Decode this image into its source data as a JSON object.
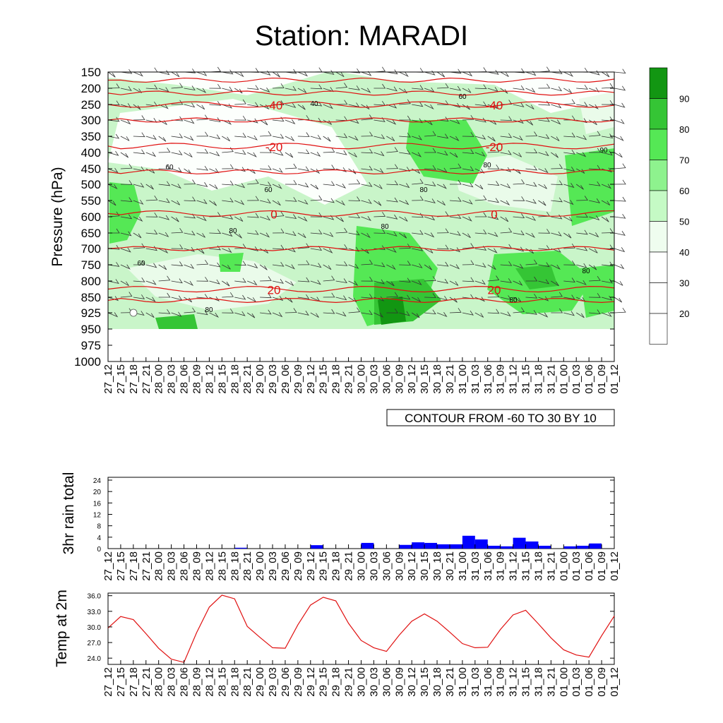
{
  "title": "Station: MARADI",
  "time_labels": [
    "27_12",
    "27_15",
    "27_18",
    "27_21",
    "28_00",
    "28_03",
    "28_06",
    "28_09",
    "28_12",
    "28_15",
    "28_18",
    "28_21",
    "29_00",
    "29_03",
    "29_06",
    "29_09",
    "29_12",
    "29_15",
    "29_18",
    "29_21",
    "30_00",
    "30_03",
    "30_06",
    "30_09",
    "30_12",
    "30_15",
    "30_18",
    "30_21",
    "31_00",
    "31_03",
    "31_06",
    "31_09",
    "31_12",
    "31_15",
    "31_18",
    "31_21",
    "01_00",
    "01_03",
    "01_06",
    "01_09",
    "01_12"
  ],
  "chart_data": [
    {
      "type": "heatmap",
      "name": "humidity-temperature-section",
      "ylabel": "Pressure (hPa)",
      "y_ticks": [
        "150",
        "200",
        "250",
        "300",
        "350",
        "400",
        "450",
        "500",
        "550",
        "600",
        "650",
        "700",
        "750",
        "800",
        "850",
        "925",
        "950",
        "975",
        "1000"
      ],
      "legend_levels": [
        "20",
        "30",
        "40",
        "50",
        "60",
        "70",
        "80",
        "90"
      ],
      "legend_colors": [
        "#ffffff",
        "#ffffff",
        "#ffffff",
        "#effdef",
        "#c5fac5",
        "#8ef28e",
        "#55e855",
        "#35c535",
        "#129612"
      ],
      "contour_label": "CONTOUR FROM -60 TO 30 BY 10",
      "temperature_isolines": [
        {
          "value": "-40",
          "p": 250
        },
        {
          "value": "-20",
          "p": 380
        },
        {
          "value": "0",
          "p": 590
        },
        {
          "value": "20",
          "p": 825
        }
      ],
      "humidity_labels": [
        "60",
        "80",
        "40",
        "90"
      ]
    },
    {
      "type": "bar",
      "name": "3hr-rain",
      "ylabel": "3hr rain total",
      "y_ticks": [
        "24",
        "20",
        "16",
        "12",
        "8",
        "4",
        "0"
      ],
      "ylim": [
        0,
        24
      ],
      "values": [
        0,
        0,
        0,
        0,
        0,
        0,
        0,
        0,
        0,
        0,
        0.3,
        0,
        0,
        0,
        0,
        0,
        1.2,
        0,
        0,
        0,
        2,
        0,
        0,
        1.3,
        2.2,
        2,
        1.5,
        1.5,
        4.5,
        3.2,
        1,
        0.8,
        3.8,
        2.5,
        1,
        0,
        0.8,
        1,
        1.8,
        0
      ]
    },
    {
      "type": "line",
      "name": "temp-2m",
      "ylabel": "Temp at 2m",
      "y_ticks": [
        "36.0",
        "33.0",
        "30.0",
        "27.0",
        "24.0"
      ],
      "ylim": [
        22.8,
        36.5
      ],
      "values": [
        29.8,
        32,
        31.4,
        28.7,
        25.9,
        23.8,
        23.2,
        28.9,
        33.8,
        36.1,
        35.4,
        30.1,
        28,
        26,
        25.9,
        30.4,
        34.2,
        35.7,
        35,
        30.7,
        27.4,
        26,
        25.3,
        28.4,
        31.1,
        32.5,
        31.1,
        29,
        26.8,
        26,
        26.1,
        29.5,
        32.3,
        33.2,
        30.6,
        27.9,
        25.6,
        24.6,
        24.2,
        28.3,
        32.1
      ]
    }
  ]
}
